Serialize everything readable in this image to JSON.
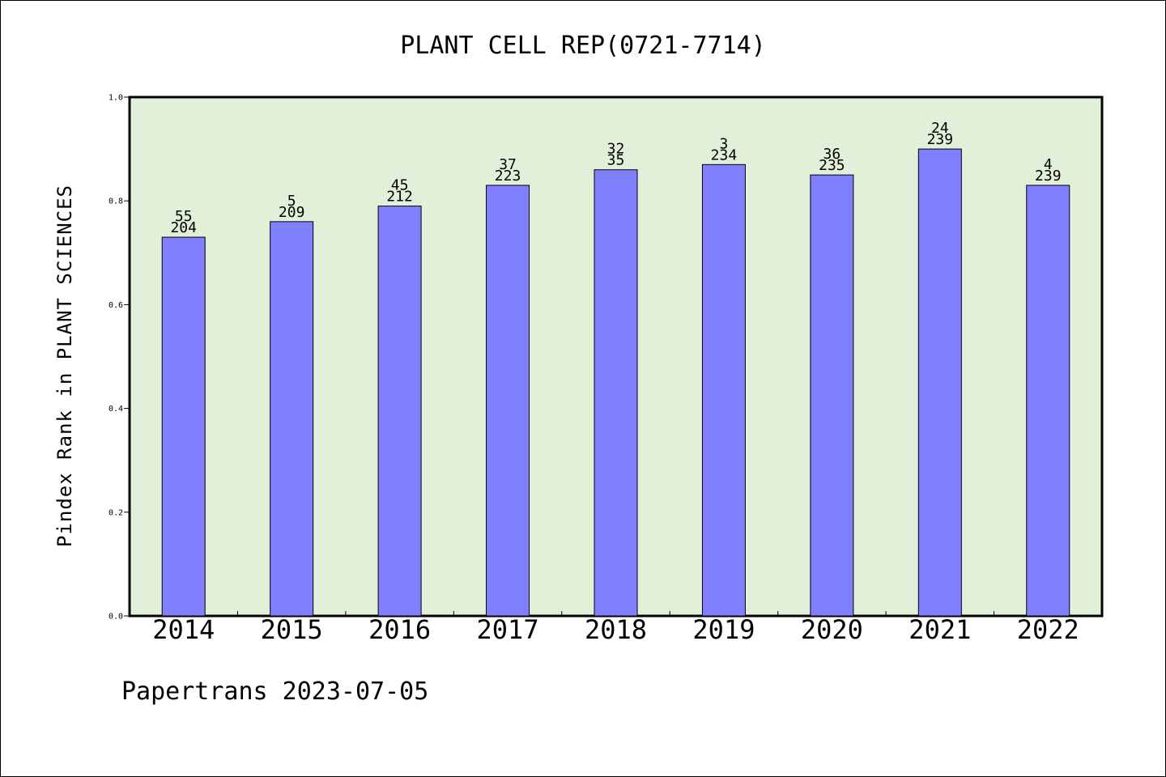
{
  "chart_data": {
    "type": "bar",
    "title": "PLANT CELL REP(0721-7714)",
    "xlabel": "",
    "ylabel": "Pindex Rank in PLANT SCIENCES",
    "ylim": [
      0,
      1.0
    ],
    "yticks": [
      "0.0",
      "0.2",
      "0.4",
      "0.6",
      "0.8",
      "1.0"
    ],
    "grid": false,
    "categories": [
      "2014",
      "2015",
      "2016",
      "2017",
      "2018",
      "2019",
      "2020",
      "2021",
      "2022"
    ],
    "values": [
      0.73,
      0.76,
      0.79,
      0.83,
      0.86,
      0.87,
      0.85,
      0.9,
      0.83
    ],
    "labels_top": [
      "55",
      "5",
      "45",
      "37",
      "32",
      "3",
      "36",
      "24",
      "4"
    ],
    "labels_bottom": [
      "204",
      "209",
      "212",
      "223",
      "35",
      "234",
      "235",
      "239",
      "239"
    ],
    "colors": {
      "bar": "#8080ff",
      "plot_bg": "#e2f0d9",
      "axis": "#000000"
    }
  },
  "footer": "Papertrans 2023-07-05"
}
